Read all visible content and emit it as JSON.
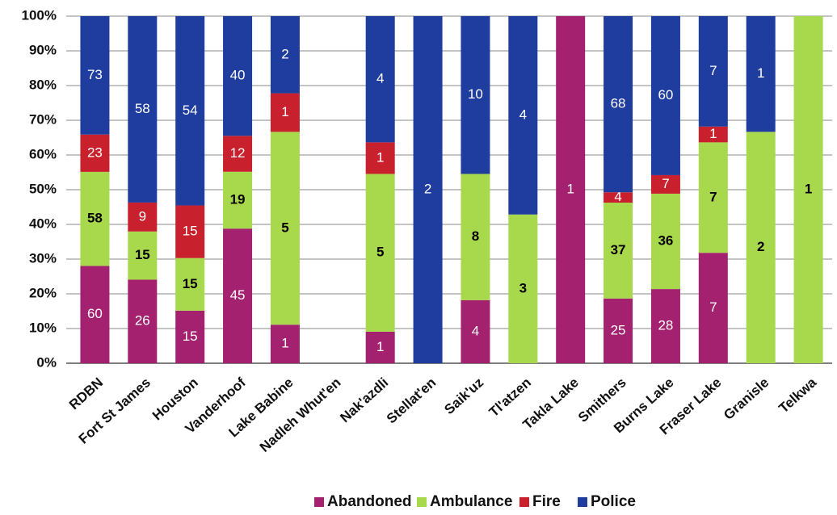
{
  "chart_data": {
    "type": "bar",
    "stacking": "percent",
    "categories": [
      "RDBN",
      "Fort St James",
      "Houston",
      "Vanderhoof",
      "Lake Babine",
      "Nadleh Whut'en",
      "Nak'azdli",
      "Stellat'en",
      "Saik'uz",
      "Tl'atzen",
      "Takla Lake",
      "Smithers",
      "Burns Lake",
      "Fraser Lake",
      "Granisle",
      "Telkwa"
    ],
    "series": [
      {
        "name": "Abandoned",
        "color": "#a3216f",
        "values": [
          60,
          26,
          15,
          45,
          1,
          0,
          1,
          0,
          4,
          0,
          1,
          25,
          28,
          7,
          0,
          0
        ]
      },
      {
        "name": "Ambulance",
        "color": "#a8d84c",
        "values": [
          58,
          15,
          15,
          19,
          5,
          0,
          5,
          0,
          8,
          3,
          0,
          37,
          36,
          7,
          2,
          1
        ]
      },
      {
        "name": "Fire",
        "color": "#c8202c",
        "values": [
          23,
          9,
          15,
          12,
          1,
          0,
          1,
          0,
          0,
          0,
          0,
          4,
          7,
          1,
          0,
          0
        ]
      },
      {
        "name": "Police",
        "color": "#1f3d9e",
        "values": [
          73,
          58,
          54,
          40,
          2,
          0,
          4,
          2,
          10,
          4,
          0,
          68,
          60,
          7,
          1,
          0
        ]
      }
    ],
    "ylim": [
      0,
      100
    ],
    "yticks": [
      {
        "value": 0,
        "label": "0%"
      },
      {
        "value": 10,
        "label": "10%"
      },
      {
        "value": 20,
        "label": "20%"
      },
      {
        "value": 30,
        "label": "30%"
      },
      {
        "value": 40,
        "label": "40%"
      },
      {
        "value": 50,
        "label": "50%"
      },
      {
        "value": 60,
        "label": "60%"
      },
      {
        "value": 70,
        "label": "70%"
      },
      {
        "value": 80,
        "label": "80%"
      },
      {
        "value": 90,
        "label": "90%"
      },
      {
        "value": 100,
        "label": "100%"
      }
    ],
    "grid": true,
    "legend": "bottom"
  }
}
